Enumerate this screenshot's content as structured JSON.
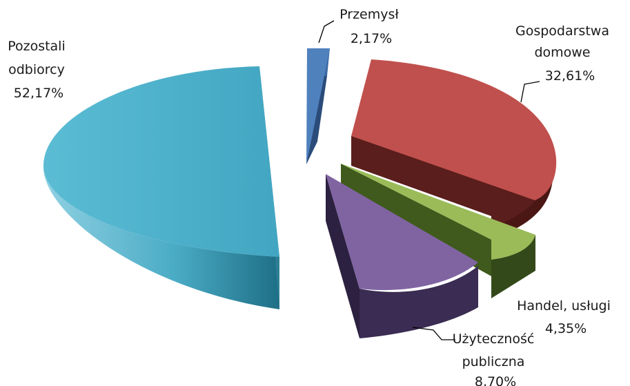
{
  "chart_data": {
    "type": "pie",
    "style": "3d-exploded",
    "slices": [
      {
        "category": "Przemysł",
        "category_lines": [
          "Przemysł"
        ],
        "value_label": "2,17%",
        "value": 2.17,
        "color": "#4F81BD",
        "side_color": "#2B4C7A",
        "exploded": true
      },
      {
        "category": "Gospodarstwa domowe",
        "category_lines": [
          "Gospodarstwa",
          "domowe"
        ],
        "value_label": "32,61%",
        "value": 32.61,
        "color": "#C0504D",
        "side_color": "#5A1E1C",
        "exploded": true
      },
      {
        "category": "Handel, usługi",
        "category_lines": [
          "Handel, usługi"
        ],
        "value_label": "4,35%",
        "value": 4.35,
        "color": "#9BBB59",
        "side_color": "#3F5A1C",
        "exploded": true
      },
      {
        "category": "Użyteczność publiczna",
        "category_lines": [
          "Użyteczność",
          "publiczna"
        ],
        "value_label": "8,70%",
        "value": 8.7,
        "color": "#8064A2",
        "side_color": "#3A2C52",
        "exploded": true
      },
      {
        "category": "Pozostali odbiorcy",
        "category_lines": [
          "Pozostali",
          "odbiorcy"
        ],
        "value_label": "52,17%",
        "value": 52.17,
        "color": "#4BACC6",
        "side_color": "#2E7F96",
        "exploded": true
      }
    ]
  }
}
